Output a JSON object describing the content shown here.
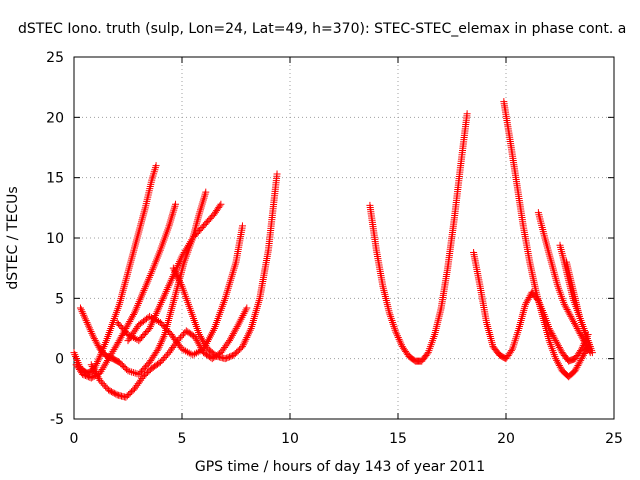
{
  "chart_data": {
    "type": "scatter",
    "title": "dSTEC Iono. truth (sulp, Lon=24, Lat=49, h=370): STEC-STEC_elemax in phase cont. a",
    "xlabel": "GPS time / hours of day 143 of year 2011",
    "ylabel": "dSTEC  / TECUs",
    "xlim": [
      0,
      25
    ],
    "ylim": [
      -5,
      25
    ],
    "xticks": [
      0,
      5,
      10,
      15,
      20,
      25
    ],
    "yticks": [
      -5,
      0,
      5,
      10,
      15,
      20,
      25
    ],
    "grid": true,
    "marker": "+",
    "color": "#ff0000",
    "series": [
      {
        "x": [
          0.0,
          0.3,
          0.6,
          0.9,
          1.2,
          1.5,
          1.8,
          2.1,
          2.4,
          2.7,
          3.0,
          3.3,
          3.6,
          3.8
        ],
        "y": [
          0.5,
          -0.8,
          -1.2,
          -1.0,
          0.2,
          1.5,
          3.0,
          4.5,
          6.5,
          8.5,
          10.5,
          12.5,
          14.8,
          16.0
        ]
      },
      {
        "x": [
          0.3,
          0.6,
          0.9,
          1.2,
          1.5,
          1.8,
          2.1,
          2.5,
          3.0,
          3.5,
          3.9,
          4.2,
          4.5,
          4.8,
          5.1,
          5.5,
          5.8,
          6.1
        ],
        "y": [
          4.2,
          3.0,
          1.8,
          0.8,
          0.2,
          0.0,
          -0.3,
          -1.0,
          -1.3,
          -0.3,
          0.8,
          2.0,
          4.0,
          6.0,
          8.0,
          10.0,
          12.0,
          13.8
        ]
      },
      {
        "x": [
          0.1,
          0.4,
          0.8,
          1.2,
          1.6,
          2.0,
          2.4,
          2.8,
          3.2,
          3.6,
          4.0,
          4.4,
          4.7
        ],
        "y": [
          -0.5,
          -1.3,
          -1.6,
          -1.2,
          0.0,
          1.2,
          2.5,
          3.8,
          5.5,
          7.2,
          9.0,
          11.0,
          12.8
        ]
      },
      {
        "x": [
          0.8,
          1.2,
          1.6,
          2.0,
          2.4,
          2.8,
          3.2,
          3.6,
          4.0,
          4.4,
          4.8,
          5.2,
          5.6,
          6.0,
          6.4,
          6.8,
          7.2,
          7.6,
          8.0
        ],
        "y": [
          -0.5,
          -1.8,
          -2.6,
          -3.0,
          -3.2,
          -2.5,
          -1.5,
          -0.8,
          -0.3,
          0.5,
          1.5,
          2.3,
          1.8,
          0.5,
          0.0,
          0.5,
          1.5,
          2.8,
          4.2
        ]
      },
      {
        "x": [
          2.0,
          2.5,
          3.0,
          3.5,
          4.0,
          4.5,
          5.0,
          5.5,
          6.0,
          6.5,
          6.8
        ],
        "y": [
          3.0,
          2.0,
          1.5,
          2.5,
          4.5,
          6.5,
          8.5,
          10.0,
          11.0,
          12.0,
          12.8
        ]
      },
      {
        "x": [
          4.6,
          5.0,
          5.4,
          5.8,
          6.2,
          6.6,
          7.0,
          7.4,
          7.8,
          8.2,
          8.6,
          9.0,
          9.4
        ],
        "y": [
          7.5,
          6.0,
          4.0,
          2.0,
          0.8,
          0.2,
          0.0,
          0.3,
          1.0,
          2.5,
          5.0,
          9.0,
          15.3
        ]
      },
      {
        "x": [
          2.5,
          3.0,
          3.5,
          4.0,
          4.5,
          5.0,
          5.5,
          6.0,
          6.5,
          7.0,
          7.5,
          7.8
        ],
        "y": [
          1.5,
          2.8,
          3.5,
          3.0,
          2.0,
          0.8,
          0.3,
          0.8,
          2.5,
          5.0,
          8.0,
          11.0
        ]
      },
      {
        "x": [
          13.7,
          14.0,
          14.3,
          14.6,
          14.9,
          15.2,
          15.5,
          15.8,
          16.1,
          16.4,
          16.7,
          17.0,
          17.3,
          17.6,
          17.9,
          18.2
        ],
        "y": [
          12.7,
          9.0,
          6.0,
          3.8,
          2.2,
          1.0,
          0.2,
          -0.2,
          -0.2,
          0.5,
          2.0,
          4.2,
          7.5,
          11.5,
          16.0,
          20.3
        ]
      },
      {
        "x": [
          18.5,
          18.8,
          19.1,
          19.4,
          19.7,
          20.0,
          20.3,
          20.6,
          20.9,
          21.2,
          21.5,
          21.8,
          22.0,
          22.3,
          22.6,
          22.9,
          23.2,
          23.5,
          23.8
        ],
        "y": [
          8.8,
          6.0,
          3.0,
          1.0,
          0.3,
          0.0,
          0.8,
          2.5,
          4.5,
          5.5,
          4.8,
          3.5,
          2.5,
          1.5,
          0.5,
          -0.2,
          0.0,
          0.8,
          2.0
        ]
      },
      {
        "x": [
          19.9,
          20.2,
          20.5,
          20.8,
          21.1,
          21.4,
          21.7,
          22.0,
          22.3,
          22.6,
          22.9,
          23.2,
          23.5,
          23.8
        ],
        "y": [
          21.3,
          18.0,
          14.5,
          11.0,
          8.0,
          5.5,
          3.5,
          1.5,
          0.0,
          -1.0,
          -1.5,
          -1.0,
          0.0,
          1.0
        ]
      },
      {
        "x": [
          21.5,
          21.8,
          22.1,
          22.4,
          22.7,
          23.0,
          23.3,
          23.6,
          23.9
        ],
        "y": [
          12.1,
          10.0,
          8.0,
          6.0,
          4.5,
          3.5,
          2.5,
          1.5,
          0.5
        ]
      },
      {
        "x": [
          22.5,
          22.7,
          22.9,
          23.1,
          23.3,
          23.5,
          23.7,
          23.9
        ],
        "y": [
          9.4,
          8.0,
          6.5,
          5.0,
          4.0,
          3.0,
          2.0,
          1.0
        ]
      },
      {
        "x": [
          22.8,
          23.0,
          23.2,
          23.4,
          23.6,
          23.8,
          24.0
        ],
        "y": [
          8.0,
          6.5,
          5.0,
          3.5,
          2.5,
          1.5,
          0.5
        ]
      }
    ]
  }
}
